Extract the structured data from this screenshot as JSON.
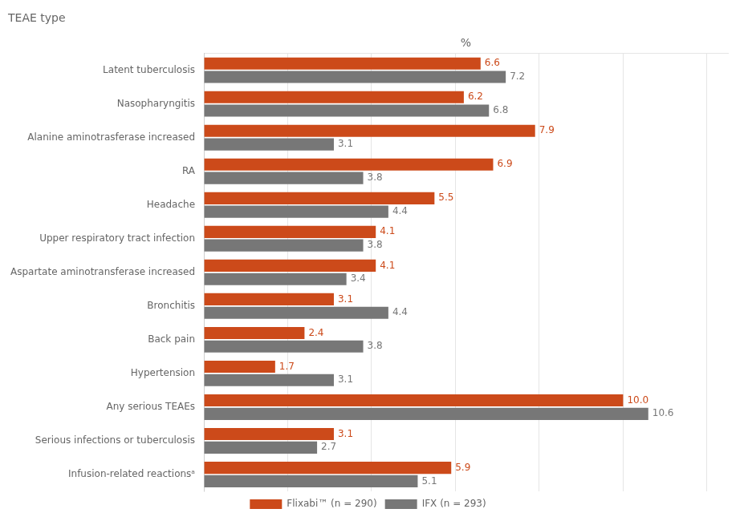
{
  "chart_data": {
    "type": "bar",
    "orientation": "horizontal",
    "title": "TEAE type",
    "xlabel": "%",
    "categories": [
      "Latent tuberculosis",
      "Nasopharyngitis",
      "Alanine aminotrasferase increased",
      "RA",
      "Headache",
      "Upper respiratory tract infection",
      "Aspartate aminotransferase increased",
      "Bronchitis",
      "Back pain",
      "Hypertension",
      "Any serious TEAEs",
      "Serious infections or tuberculosis",
      "Infusion-related reactionsᵃ"
    ],
    "series": [
      {
        "name": "Flixabi™ (n = 290)",
        "color": "#cc4a1a",
        "values": [
          6.6,
          6.2,
          7.9,
          6.9,
          5.5,
          4.1,
          4.1,
          3.1,
          2.4,
          1.7,
          10.0,
          3.1,
          5.9
        ],
        "value_labels": [
          "6.6",
          "6.2",
          "7.9",
          "6.9",
          "5.5",
          "4.1",
          "4.1",
          "3.1",
          "2.4",
          "1.7",
          "10.0",
          "3.1",
          "5.9"
        ]
      },
      {
        "name": "IFX (n = 293)",
        "color": "#777777",
        "values": [
          7.2,
          6.8,
          3.1,
          3.8,
          4.4,
          3.8,
          3.4,
          4.4,
          3.8,
          3.1,
          10.6,
          2.7,
          5.1
        ]
      }
    ],
    "xlim": [
      0,
      12.5
    ],
    "xticks": [
      0,
      2,
      4,
      6,
      8,
      10,
      12
    ],
    "grid": true,
    "legend": "bottom",
    "data_labels": true,
    "tick_labels": "y"
  }
}
